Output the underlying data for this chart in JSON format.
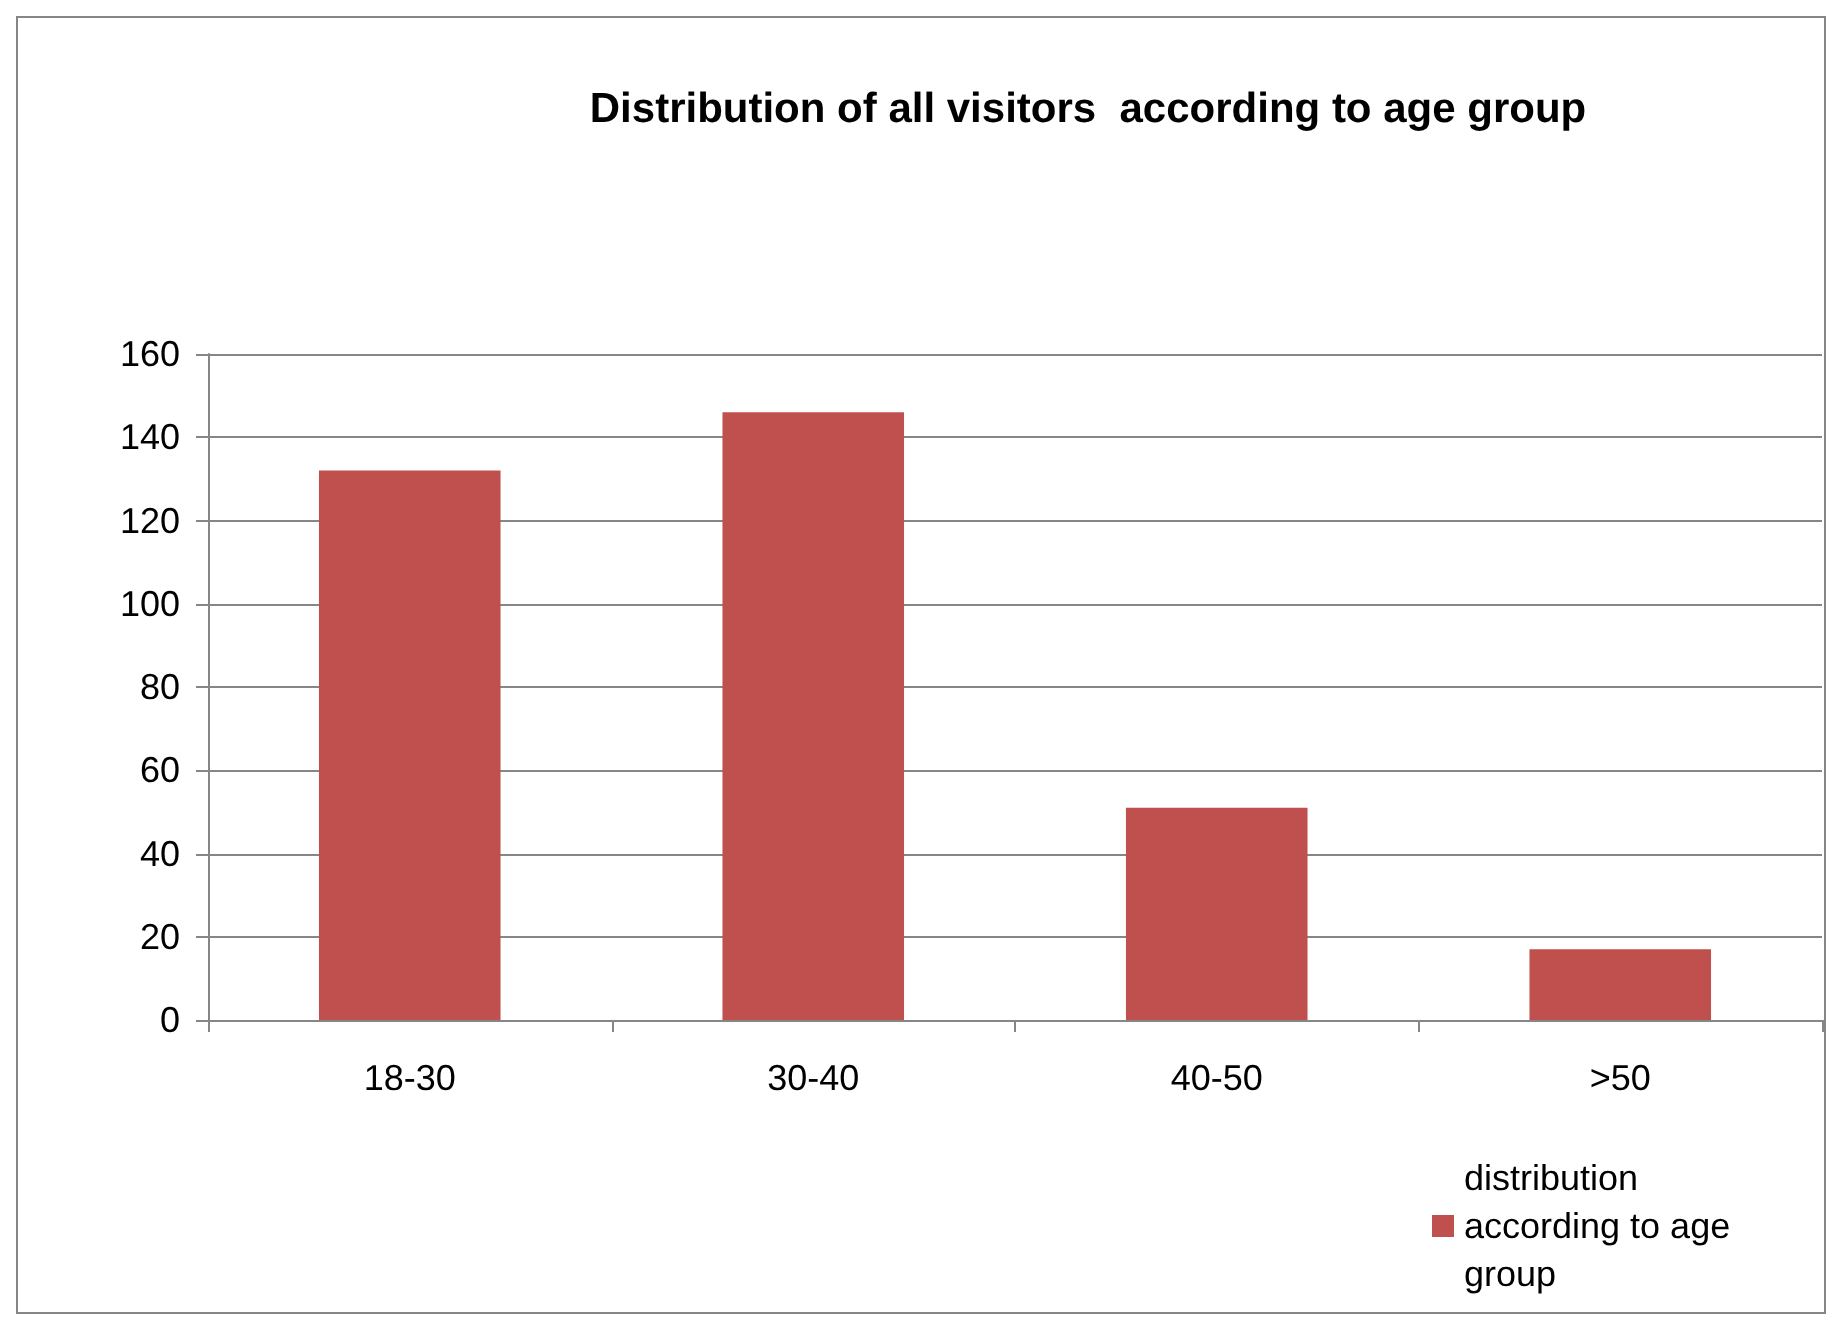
{
  "chart_data": {
    "type": "bar",
    "title": "Distribution of all visitors  according to age group",
    "categories": [
      "18-30",
      "30-40",
      "40-50",
      ">50"
    ],
    "series": [
      {
        "name": "distribution according to age group",
        "color": "#c0504d",
        "values": [
          132,
          146,
          51,
          17
        ]
      }
    ],
    "ylim": [
      0,
      160
    ],
    "yticks": [
      0,
      20,
      40,
      60,
      80,
      100,
      120,
      140,
      160
    ],
    "grid": "y",
    "legend": "bottom right"
  }
}
